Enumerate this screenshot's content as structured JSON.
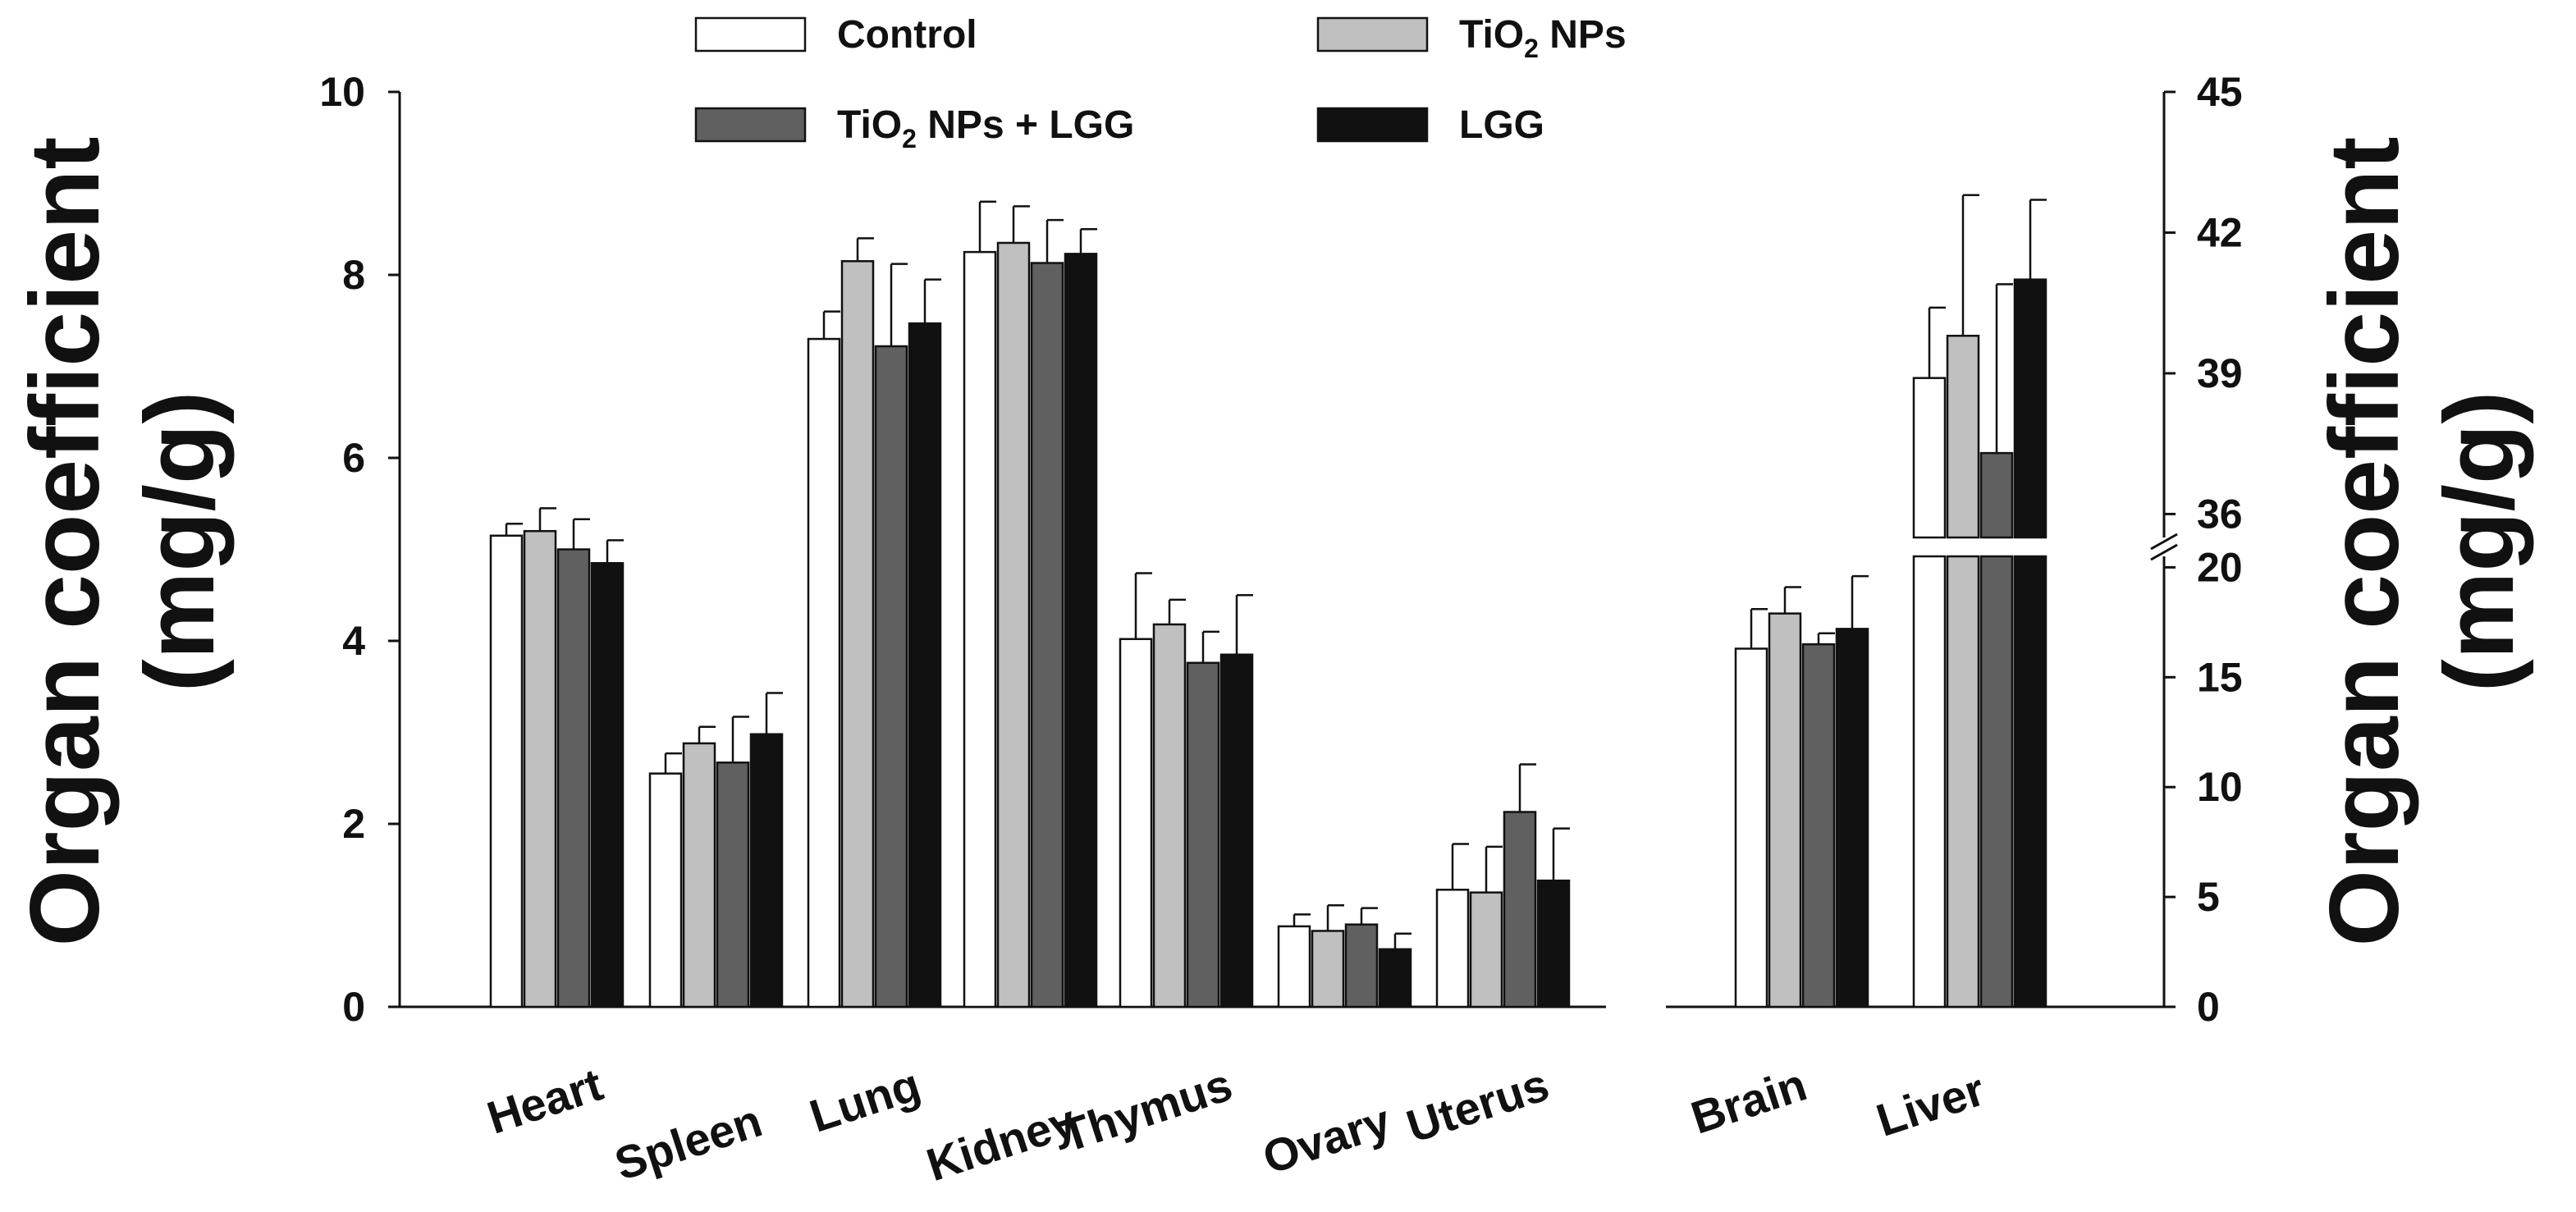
{
  "chart_data": {
    "type": "bar",
    "left_panel": {
      "categories": [
        "Heart",
        "Spleen",
        "Lung",
        "Kidney",
        "Thymus",
        "Ovary",
        "Uterus"
      ],
      "ylabel_line1": "Organ coefficient",
      "ylabel_line2": "(mg/g)",
      "ylim": [
        0,
        10
      ],
      "yticks": [
        "0",
        "2",
        "4",
        "6",
        "8",
        "10"
      ],
      "series": [
        {
          "name": "Control",
          "values": [
            5.15,
            2.55,
            7.3,
            8.25,
            4.02,
            0.88,
            1.28
          ],
          "errors": [
            0.13,
            0.22,
            0.3,
            0.55,
            0.72,
            0.13,
            0.5
          ]
        },
        {
          "name": "TiO2 NPs",
          "values": [
            5.2,
            2.88,
            8.15,
            8.35,
            4.18,
            0.83,
            1.25
          ],
          "errors": [
            0.25,
            0.18,
            0.25,
            0.4,
            0.27,
            0.28,
            0.5
          ]
        },
        {
          "name": "TiO2 NPs + LGG",
          "values": [
            5.0,
            2.67,
            7.22,
            8.13,
            3.76,
            0.9,
            2.13
          ],
          "errors": [
            0.33,
            0.5,
            0.9,
            0.47,
            0.34,
            0.18,
            0.52
          ]
        },
        {
          "name": "LGG",
          "values": [
            4.85,
            2.98,
            7.47,
            8.23,
            3.85,
            0.63,
            1.38
          ],
          "errors": [
            0.25,
            0.45,
            0.48,
            0.27,
            0.65,
            0.17,
            0.57
          ]
        }
      ]
    },
    "right_panel": {
      "categories": [
        "Brain",
        "Liver"
      ],
      "ylabel_line1": "Organ coefficient",
      "ylabel_line2": "(mg/g)",
      "axis_break": [
        20.5,
        35.5
      ],
      "lower_ylim": [
        0,
        20.5
      ],
      "upper_ylim": [
        35.5,
        45
      ],
      "yticks_lower": [
        "0",
        "5",
        "10",
        "15",
        "20"
      ],
      "yticks_upper": [
        "36",
        "39",
        "42",
        "45"
      ],
      "series": [
        {
          "name": "Control",
          "values": [
            16.3,
            38.9
          ],
          "errors": [
            1.8,
            1.5
          ]
        },
        {
          "name": "TiO2 NPs",
          "values": [
            17.9,
            39.8
          ],
          "errors": [
            1.2,
            3.0
          ]
        },
        {
          "name": "TiO2 NPs + LGG",
          "values": [
            16.5,
            37.3
          ],
          "errors": [
            0.5,
            3.6
          ]
        },
        {
          "name": "LGG",
          "values": [
            17.2,
            41.0
          ],
          "errors": [
            2.4,
            1.7
          ]
        }
      ]
    },
    "legend": [
      {
        "name": "Control",
        "label_main": "Control",
        "label_sub": "",
        "label_tail": "",
        "color": "#ffffff"
      },
      {
        "name": "TiO2 NPs",
        "label_main": "TiO",
        "label_sub": "2",
        "label_tail": " NPs",
        "color": "#c0c0c0"
      },
      {
        "name": "TiO2 NPs + LGG",
        "label_main": "TiO",
        "label_sub": "2",
        "label_tail": " NPs + LGG",
        "color": "#606060"
      },
      {
        "name": "LGG",
        "label_main": "LGG",
        "label_sub": "",
        "label_tail": "",
        "color": "#111111"
      }
    ],
    "colors": [
      "#ffffff",
      "#c0c0c0",
      "#606060",
      "#111111"
    ],
    "legend_position": "top"
  }
}
